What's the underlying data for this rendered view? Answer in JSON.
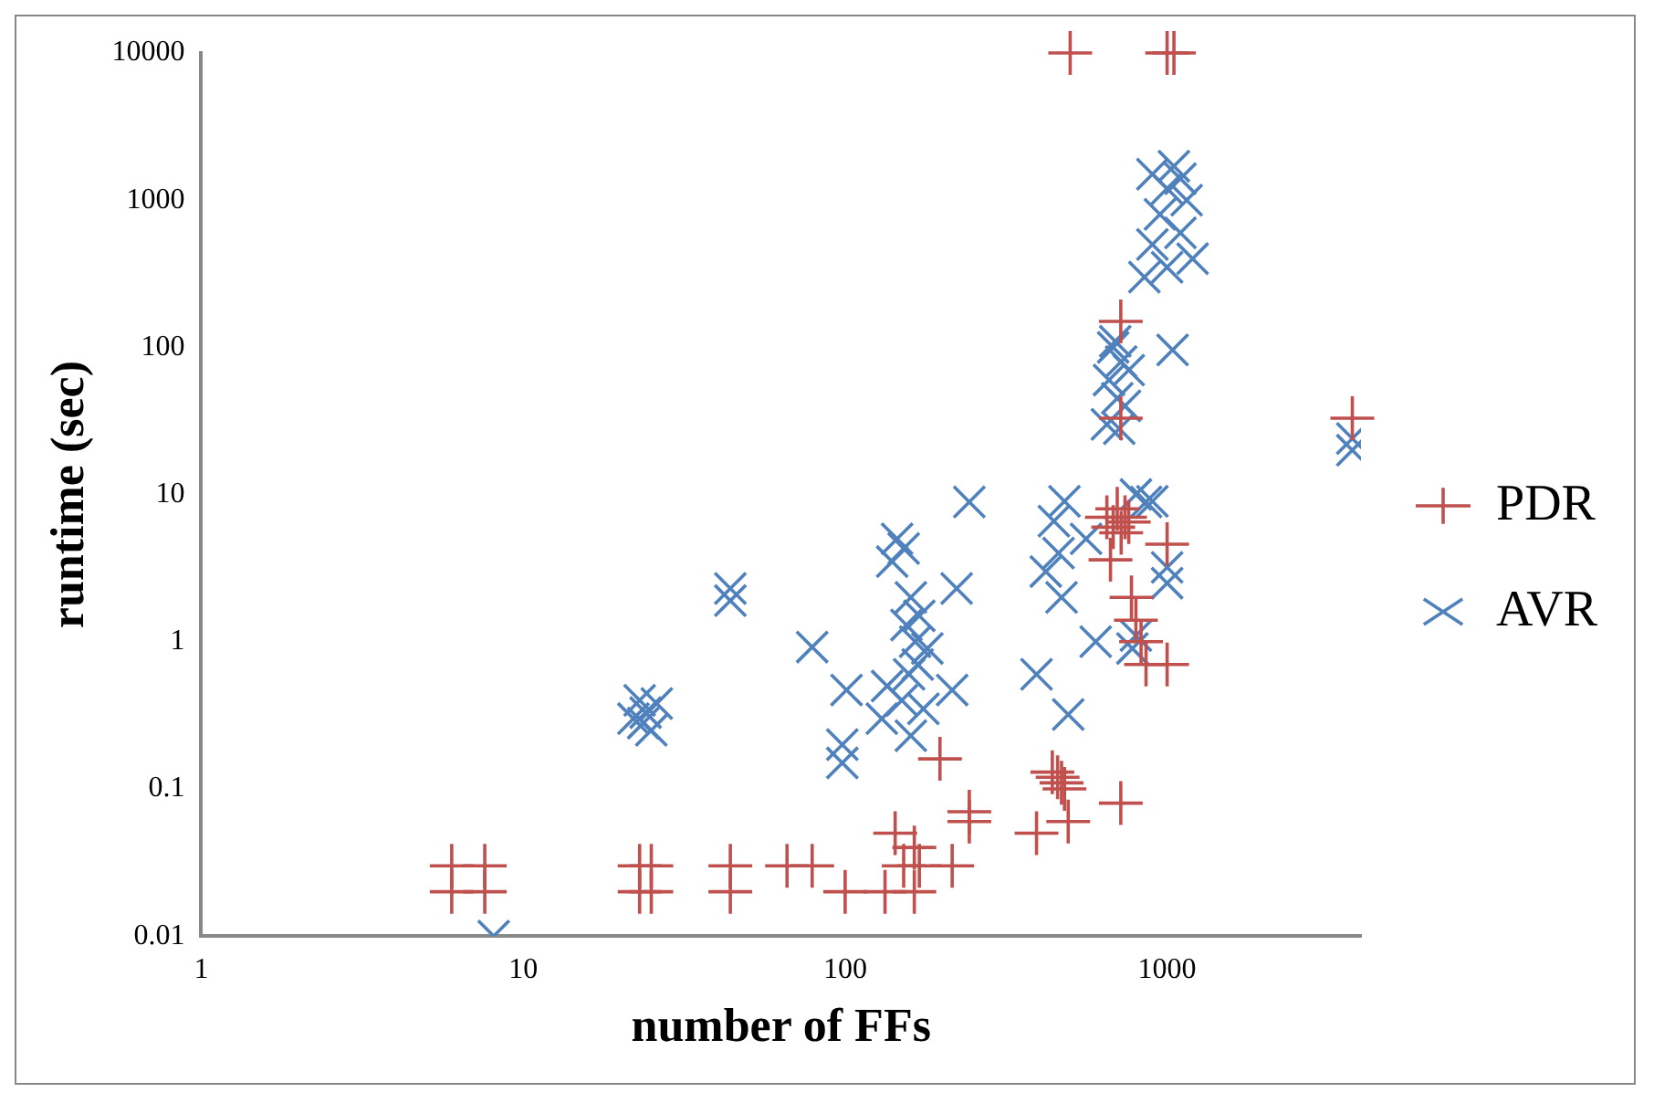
{
  "chart_data": {
    "type": "scatter",
    "xlabel": "number of FFs",
    "ylabel": "runtime (sec)",
    "log": "xy",
    "xlim": [
      1,
      4000
    ],
    "ylim": [
      0.01,
      10000
    ],
    "xticks": [
      1,
      10,
      100,
      1000
    ],
    "yticks": [
      0.01,
      0.1,
      1,
      10,
      100,
      1000,
      10000
    ],
    "grid": false,
    "legend": "right",
    "series": [
      {
        "name": "PDR",
        "color": "#c0504d",
        "marker": "cross",
        "x": [
          6,
          6,
          7.6,
          7.6,
          23,
          23,
          25,
          25,
          44,
          44,
          66,
          79,
          100,
          133,
          143,
          152,
          164,
          164,
          170,
          197,
          215,
          243,
          243,
          393,
          440,
          457,
          470,
          480,
          493,
          500,
          718,
          1000,
          1050,
          718,
          718,
          3760,
          650,
          680,
          700,
          720,
          740,
          760,
          667,
          1000,
          775,
          800,
          860,
          1000,
          830
        ],
        "values": [
          0.03,
          0.02,
          0.03,
          0.02,
          0.03,
          0.02,
          0.03,
          0.02,
          0.03,
          0.02,
          0.03,
          0.03,
          0.02,
          0.02,
          0.05,
          0.03,
          0.04,
          0.02,
          0.03,
          0.16,
          0.03,
          0.07,
          0.06,
          0.05,
          0.13,
          0.12,
          0.11,
          0.1,
          0.06,
          10000,
          0.08,
          10000,
          10000,
          150,
          33,
          33,
          7,
          6,
          8,
          5.5,
          7,
          6.5,
          3.6,
          4.6,
          2,
          1.4,
          0.7,
          0.7,
          1
        ]
      },
      {
        "name": "AVR",
        "color": "#4f81bd",
        "marker": "x",
        "x": [
          8.1,
          22,
          23,
          24,
          25,
          26,
          23.6,
          44,
          44,
          79,
          101,
          98,
          98,
          130,
          135,
          140,
          145,
          150,
          152,
          155,
          158,
          160,
          165,
          168,
          170,
          175,
          180,
          160,
          222,
          215,
          243,
          393,
          420,
          445,
          460,
          470,
          480,
          493,
          800,
          1000,
          860,
          1000,
          650,
          660,
          680,
          700,
          720,
          740,
          760,
          690,
          710,
          1040,
          850,
          900,
          950,
          1000,
          1050,
          1100,
          1150,
          1200,
          900,
          1000,
          1100,
          3760,
          3760,
          800,
          900,
          560,
          600,
          780
        ],
        "values": [
          0.01,
          0.3,
          0.4,
          0.33,
          0.25,
          0.38,
          0.28,
          2.3,
          1.9,
          0.92,
          0.47,
          0.15,
          0.2,
          0.3,
          0.5,
          3.5,
          5,
          0.4,
          4.3,
          1.3,
          0.6,
          2,
          1,
          0.7,
          1.5,
          0.35,
          0.9,
          0.23,
          2.3,
          0.47,
          8.9,
          0.6,
          3,
          6.6,
          4,
          2,
          9,
          0.32,
          1.1,
          2.5,
          8.9,
          3.2,
          30,
          60,
          100,
          45,
          80,
          40,
          70,
          110,
          28,
          96,
          300,
          500,
          800,
          1200,
          1700,
          600,
          1000,
          400,
          1500,
          350,
          1400,
          24,
          20,
          10,
          9,
          5,
          1,
          0.9
        ]
      }
    ]
  }
}
